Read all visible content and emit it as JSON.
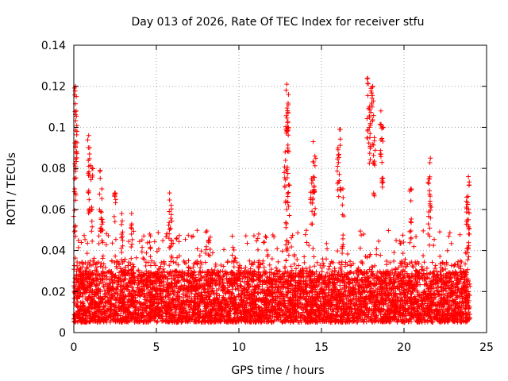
{
  "chart_data": {
    "type": "scatter",
    "title": "Day 013 of 2026, Rate Of TEC Index for receiver stfu",
    "xlabel": "GPS time / hours",
    "ylabel": "ROTI / TECUs",
    "xlim": [
      0,
      25
    ],
    "ylim": [
      0,
      0.14
    ],
    "xticks": [
      0,
      5,
      10,
      15,
      20,
      25
    ],
    "xtick_labels": [
      "0",
      "5",
      "10",
      "15",
      "20",
      "25"
    ],
    "yticks": [
      0,
      0.02,
      0.04,
      0.06,
      0.08,
      0.1,
      0.12,
      0.14
    ],
    "ytick_labels": [
      "0",
      "0.02",
      "0.04",
      "0.06",
      "0.08",
      "0.1",
      "0.12",
      "0.14"
    ],
    "grid": true,
    "marker": "+",
    "color": "#ff0000",
    "baseline_band": [
      0.005,
      0.03
    ],
    "x_extent": [
      0,
      24
    ],
    "point_count_estimate": 6000,
    "series": [
      {
        "name": "ROTI",
        "notable_points": [
          {
            "x": 0.1,
            "y": 0.12
          },
          {
            "x": 0.15,
            "y": 0.115
          },
          {
            "x": 0.12,
            "y": 0.093
          },
          {
            "x": 0.05,
            "y": 0.075
          },
          {
            "x": 0.9,
            "y": 0.096
          },
          {
            "x": 0.95,
            "y": 0.087
          },
          {
            "x": 1.1,
            "y": 0.08
          },
          {
            "x": 1.6,
            "y": 0.079
          },
          {
            "x": 1.7,
            "y": 0.07
          },
          {
            "x": 2.5,
            "y": 0.068
          },
          {
            "x": 2.9,
            "y": 0.058
          },
          {
            "x": 3.5,
            "y": 0.058
          },
          {
            "x": 4.6,
            "y": 0.048
          },
          {
            "x": 5.8,
            "y": 0.068
          },
          {
            "x": 5.9,
            "y": 0.062
          },
          {
            "x": 8.2,
            "y": 0.045
          },
          {
            "x": 9.6,
            "y": 0.047
          },
          {
            "x": 11.2,
            "y": 0.048
          },
          {
            "x": 12.9,
            "y": 0.121
          },
          {
            "x": 13.0,
            "y": 0.116
          },
          {
            "x": 12.95,
            "y": 0.1
          },
          {
            "x": 12.8,
            "y": 0.088
          },
          {
            "x": 13.0,
            "y": 0.072
          },
          {
            "x": 12.9,
            "y": 0.06
          },
          {
            "x": 14.5,
            "y": 0.093
          },
          {
            "x": 14.6,
            "y": 0.086
          },
          {
            "x": 14.4,
            "y": 0.075
          },
          {
            "x": 16.1,
            "y": 0.099
          },
          {
            "x": 16.0,
            "y": 0.09
          },
          {
            "x": 16.3,
            "y": 0.07
          },
          {
            "x": 17.8,
            "y": 0.124
          },
          {
            "x": 18.1,
            "y": 0.12
          },
          {
            "x": 18.0,
            "y": 0.119
          },
          {
            "x": 17.9,
            "y": 0.11
          },
          {
            "x": 18.6,
            "y": 0.108
          },
          {
            "x": 18.7,
            "y": 0.1
          },
          {
            "x": 18.2,
            "y": 0.095
          },
          {
            "x": 20.4,
            "y": 0.07
          },
          {
            "x": 21.6,
            "y": 0.085
          },
          {
            "x": 21.5,
            "y": 0.075
          },
          {
            "x": 23.9,
            "y": 0.076
          },
          {
            "x": 23.8,
            "y": 0.066
          },
          {
            "x": 23.9,
            "y": 0.055
          }
        ]
      }
    ]
  }
}
